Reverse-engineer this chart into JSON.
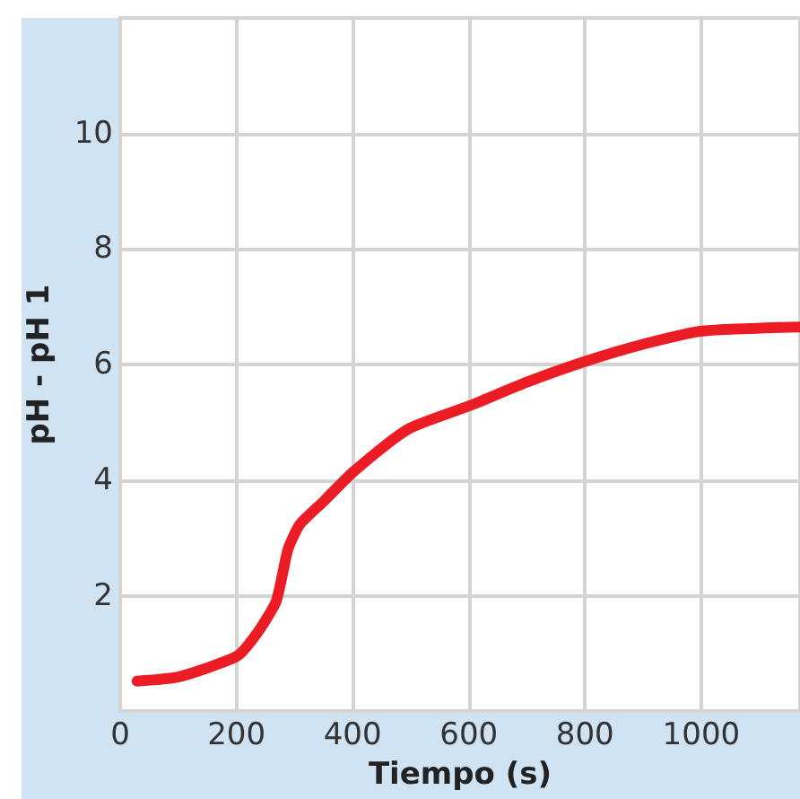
{
  "chart_data": {
    "type": "line",
    "xlabel": "Tiempo (s)",
    "ylabel": "pH - pH 1",
    "x": [
      29,
      103,
      202,
      237,
      268,
      280,
      289,
      309,
      351,
      402,
      495,
      602,
      701,
      802,
      907,
      1002,
      1170
    ],
    "series": [
      {
        "color": "#ec1c24",
        "values": [
          0.52,
          0.6,
          0.96,
          1.37,
          1.89,
          2.4,
          2.81,
          3.23,
          3.64,
          4.15,
          4.88,
          5.29,
          5.7,
          6.06,
          6.37,
          6.58,
          6.65
        ]
      }
    ],
    "xlim": [
      0,
      1170
    ],
    "xticks": [
      0,
      200,
      400,
      600,
      800,
      1000
    ],
    "ylim": [
      0,
      12
    ],
    "yticks": [
      2,
      4,
      6,
      8,
      10
    ],
    "grid": true,
    "marker": "none",
    "line_style": "solid"
  }
}
